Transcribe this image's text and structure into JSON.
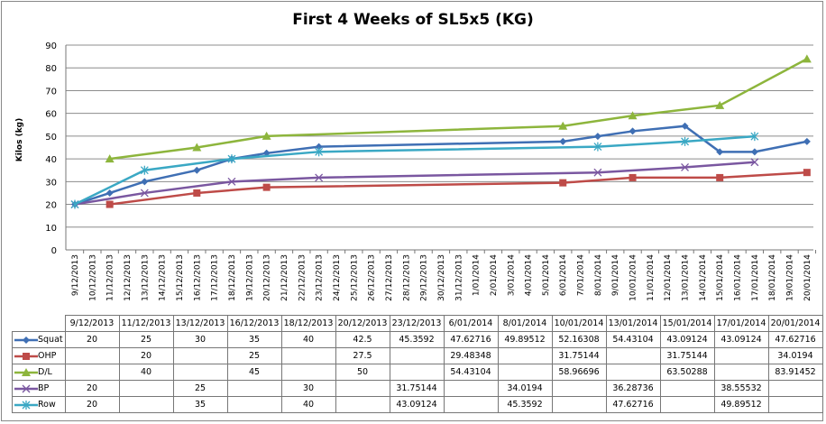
{
  "chart_data": {
    "type": "line",
    "title": "First 4 Weeks of SL5x5 (KG)",
    "xlabel": "",
    "ylabel": "Kilos (kg)",
    "ylim": [
      0,
      90
    ],
    "yticks": [
      0,
      10,
      20,
      30,
      40,
      50,
      60,
      70,
      80,
      90
    ],
    "grid": true,
    "legend": "bottom data table",
    "axis_dates": [
      "9/12/2013",
      "10/12/2013",
      "11/12/2013",
      "12/12/2013",
      "13/12/2013",
      "14/12/2013",
      "15/12/2013",
      "16/12/2013",
      "17/12/2013",
      "18/12/2013",
      "19/12/2013",
      "20/12/2013",
      "21/12/2013",
      "22/12/2013",
      "23/12/2013",
      "24/12/2013",
      "25/12/2013",
      "26/12/2013",
      "27/12/2013",
      "28/12/2013",
      "29/12/2013",
      "30/12/2013",
      "31/12/2013",
      "1/01/2014",
      "2/01/2014",
      "3/01/2014",
      "4/01/2014",
      "5/01/2014",
      "6/01/2014",
      "7/01/2014",
      "8/01/2014",
      "9/01/2014",
      "10/01/2014",
      "11/01/2014",
      "12/01/2014",
      "13/01/2014",
      "14/01/2014",
      "15/01/2014",
      "16/01/2014",
      "17/01/2014",
      "18/01/2014",
      "19/01/2014",
      "20/01/2014"
    ],
    "categories": [
      "9/12/2013",
      "11/12/2013",
      "13/12/2013",
      "16/12/2013",
      "18/12/2013",
      "20/12/2013",
      "23/12/2013",
      "6/01/2014",
      "8/01/2014",
      "10/01/2014",
      "13/01/2014",
      "15/01/2014",
      "17/01/2014",
      "20/01/2014"
    ],
    "category_day_index": [
      0,
      2,
      4,
      7,
      9,
      11,
      14,
      28,
      30,
      32,
      35,
      37,
      39,
      42
    ],
    "series": [
      {
        "name": "Squat",
        "color": "#3f6fb4",
        "marker": "diamond",
        "values": [
          "20",
          "25",
          "30",
          "35",
          "40",
          "42.5",
          "45.3592",
          "47.62716",
          "49.89512",
          "52.16308",
          "54.43104",
          "43.09124",
          "43.09124",
          "47.62716"
        ]
      },
      {
        "name": "OHP",
        "color": "#be4b48",
        "marker": "square",
        "values": [
          "",
          "20",
          "",
          "25",
          "",
          "27.5",
          "",
          "29.48348",
          "",
          "31.75144",
          "",
          "31.75144",
          "",
          "34.0194"
        ]
      },
      {
        "name": "D/L",
        "color": "#8db53c",
        "marker": "triangle",
        "values": [
          "",
          "40",
          "",
          "45",
          "",
          "50",
          "",
          "54.43104",
          "",
          "58.96696",
          "",
          "63.50288",
          "",
          "83.91452"
        ]
      },
      {
        "name": "BP",
        "color": "#7a57a0",
        "marker": "x",
        "values": [
          "20",
          "",
          "25",
          "",
          "30",
          "",
          "31.75144",
          "",
          "34.0194",
          "",
          "36.28736",
          "",
          "38.55532",
          ""
        ]
      },
      {
        "name": "Row",
        "color": "#3aa8c4",
        "marker": "star",
        "values": [
          "20",
          "",
          "35",
          "",
          "40",
          "",
          "43.09124",
          "",
          "45.3592",
          "",
          "47.62716",
          "",
          "49.89512",
          ""
        ]
      }
    ]
  }
}
